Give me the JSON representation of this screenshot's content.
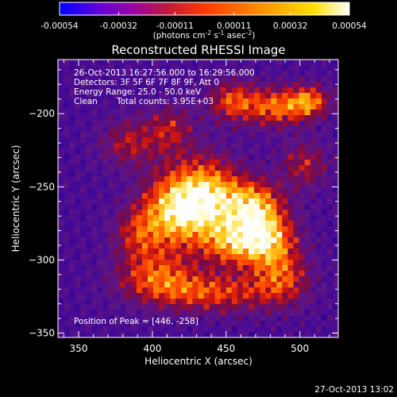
{
  "colorbar": {
    "min": -0.00054,
    "max": 0.00054,
    "tick_labels": [
      "-0.00054",
      "-0.00032",
      "-0.00011",
      "0.00011",
      "0.00032",
      "0.00054"
    ],
    "tick_values": [
      -0.00054,
      -0.00032,
      -0.00011,
      0.00011,
      0.00032,
      0.00054
    ],
    "units_parts": [
      "(photons cm",
      "-2",
      " s",
      "-1",
      " asec",
      "-2",
      ")"
    ],
    "colors": [
      "#0000ff",
      "#5a00d8",
      "#9a00a8",
      "#c01a3a",
      "#ff3a00",
      "#ff7000",
      "#ffa800",
      "#ffe000",
      "#ffffff"
    ]
  },
  "chart_data": {
    "type": "heatmap",
    "title": "Reconstructed RHESSI Image",
    "xlabel": "Heliocentric X (arcsec)",
    "ylabel": "Heliocentric Y (arcsec)",
    "xlim": [
      336,
      526
    ],
    "ylim": [
      -353,
      -163
    ],
    "xticks": [
      350,
      400,
      450,
      500
    ],
    "xtick_labels": [
      "350",
      "400",
      "450",
      "500"
    ],
    "yticks": [
      -200,
      -250,
      -300,
      -350
    ],
    "ytick_labels": [
      "−200",
      "−250",
      "−300",
      "−350"
    ],
    "peak_position": [
      446,
      -258
    ],
    "overlay": {
      "time_range": "26-Oct-2013 16:27:56.000 to 16:29:56.000",
      "detectors": "Detectors: 3F 5F 6F 7F 8F 9F, Att 0",
      "energy": "Energy Range: 25.0 - 50.0 keV",
      "clean": "Clean",
      "total_counts": "Total counts: 3.95E+03",
      "peak": "Position of Peak = [446, -258]"
    }
  },
  "footer": {
    "timestamp": "27-Oct-2013 13:02"
  }
}
